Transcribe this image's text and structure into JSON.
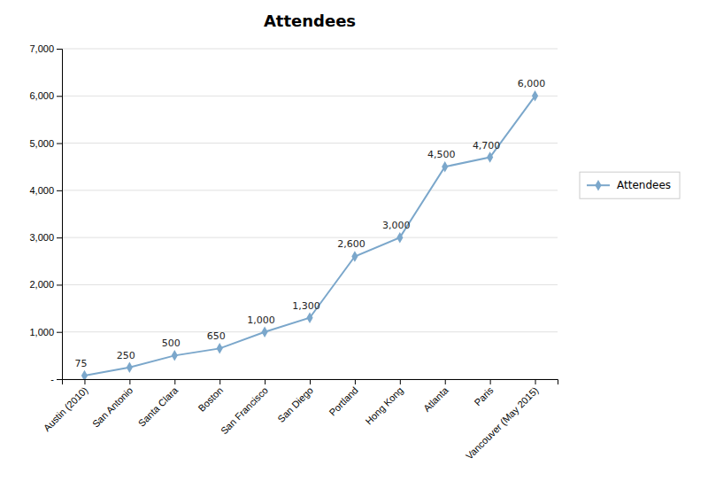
{
  "chart_data": {
    "type": "line",
    "title": "Attendees",
    "categories": [
      "Austin (2010)",
      "San Antonio",
      "Santa Clara",
      "Boston",
      "San Francisco",
      "San Diego",
      "Portland",
      "Hong Kong",
      "Atlanta",
      "Paris",
      "Vancouver (May 2015)"
    ],
    "series": [
      {
        "name": "Attendees",
        "color": "#7BA7CB",
        "marker": "diamond",
        "values": [
          75,
          250,
          500,
          650,
          1000,
          1300,
          2600,
          3000,
          4500,
          4700,
          6000
        ],
        "value_labels": [
          "75",
          "250",
          "500",
          "650",
          "1,000",
          "1,300",
          "2,600",
          "3,000",
          "4,500",
          "4,700",
          "6,000"
        ]
      }
    ],
    "ylim": [
      0,
      7000
    ],
    "yticks": [
      {
        "value": 0,
        "label": "-"
      },
      {
        "value": 1000,
        "label": "1,000"
      },
      {
        "value": 2000,
        "label": "2,000"
      },
      {
        "value": 3000,
        "label": "3,000"
      },
      {
        "value": 4000,
        "label": "4,000"
      },
      {
        "value": 5000,
        "label": "5,000"
      },
      {
        "value": 6000,
        "label": "6,000"
      },
      {
        "value": 7000,
        "label": "7,000"
      }
    ],
    "grid": true,
    "data_labels": true,
    "legend": "right"
  }
}
